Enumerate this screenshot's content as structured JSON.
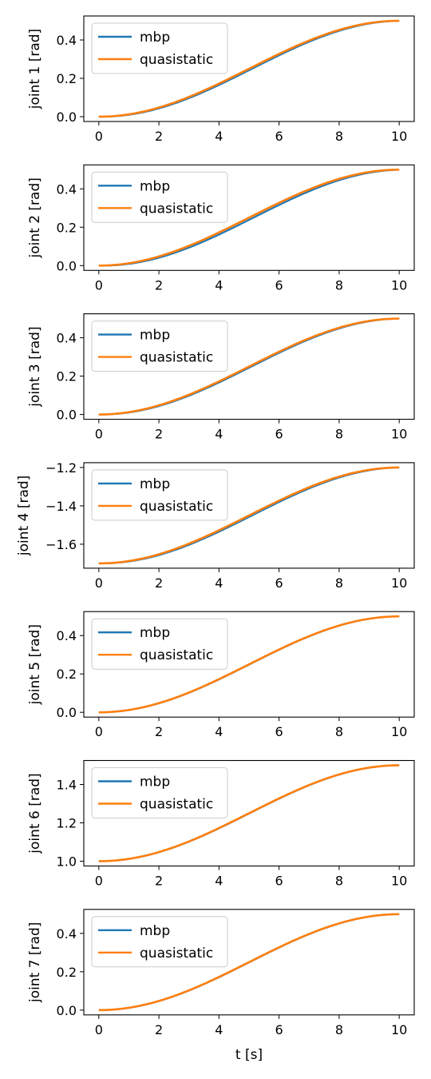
{
  "figure": {
    "xlabel": "t [s]",
    "legend_position": "upper-left",
    "colors": {
      "mbp": "#1f77b4",
      "quasistatic": "#ff7f0e"
    }
  },
  "chart_data": [
    {
      "type": "line",
      "ylabel": "joint 1 [rad]",
      "x_range": [
        0,
        10
      ],
      "xlim": [
        -0.5,
        10.5
      ],
      "xticks": [
        0,
        2,
        4,
        6,
        8,
        10
      ],
      "ylim": [
        -0.025,
        0.525
      ],
      "yticks": [
        0.0,
        0.2,
        0.4
      ],
      "ytick_labels": [
        "0.0",
        "0.2",
        "0.4"
      ],
      "start_value": 0.0,
      "end_value": 0.5,
      "series": [
        {
          "name": "mbp",
          "color": "#1f77b4",
          "lag": 0.1
        },
        {
          "name": "quasistatic",
          "color": "#ff7f0e",
          "lag": 0.0
        }
      ]
    },
    {
      "type": "line",
      "ylabel": "joint 2 [rad]",
      "x_range": [
        0,
        10
      ],
      "xlim": [
        -0.5,
        10.5
      ],
      "xticks": [
        0,
        2,
        4,
        6,
        8,
        10
      ],
      "ylim": [
        -0.025,
        0.525
      ],
      "yticks": [
        0.0,
        0.2,
        0.4
      ],
      "ytick_labels": [
        "0.0",
        "0.2",
        "0.4"
      ],
      "start_value": 0.0,
      "end_value": 0.5,
      "series": [
        {
          "name": "mbp",
          "color": "#1f77b4",
          "lag": 0.15
        },
        {
          "name": "quasistatic",
          "color": "#ff7f0e",
          "lag": 0.0
        }
      ]
    },
    {
      "type": "line",
      "ylabel": "joint 3 [rad]",
      "x_range": [
        0,
        10
      ],
      "xlim": [
        -0.5,
        10.5
      ],
      "xticks": [
        0,
        2,
        4,
        6,
        8,
        10
      ],
      "ylim": [
        -0.025,
        0.525
      ],
      "yticks": [
        0.0,
        0.2,
        0.4
      ],
      "ytick_labels": [
        "0.0",
        "0.2",
        "0.4"
      ],
      "start_value": 0.0,
      "end_value": 0.5,
      "series": [
        {
          "name": "mbp",
          "color": "#1f77b4",
          "lag": 0.08
        },
        {
          "name": "quasistatic",
          "color": "#ff7f0e",
          "lag": 0.0
        }
      ]
    },
    {
      "type": "line",
      "ylabel": "joint 4 [rad]",
      "x_range": [
        0,
        10
      ],
      "xlim": [
        -0.5,
        10.5
      ],
      "xticks": [
        0,
        2,
        4,
        6,
        8,
        10
      ],
      "ylim": [
        -1.725,
        -1.175
      ],
      "yticks": [
        -1.6,
        -1.4,
        -1.2
      ],
      "ytick_labels": [
        "−1.6",
        "−1.4",
        "−1.2"
      ],
      "start_value": -1.7,
      "end_value": -1.2,
      "series": [
        {
          "name": "mbp",
          "color": "#1f77b4",
          "lag": 0.1
        },
        {
          "name": "quasistatic",
          "color": "#ff7f0e",
          "lag": 0.0
        }
      ]
    },
    {
      "type": "line",
      "ylabel": "joint 5 [rad]",
      "x_range": [
        0,
        10
      ],
      "xlim": [
        -0.5,
        10.5
      ],
      "xticks": [
        0,
        2,
        4,
        6,
        8,
        10
      ],
      "ylim": [
        -0.025,
        0.525
      ],
      "yticks": [
        0.0,
        0.2,
        0.4
      ],
      "ytick_labels": [
        "0.0",
        "0.2",
        "0.4"
      ],
      "start_value": 0.0,
      "end_value": 0.5,
      "series": [
        {
          "name": "mbp",
          "color": "#1f77b4",
          "lag": 0.02
        },
        {
          "name": "quasistatic",
          "color": "#ff7f0e",
          "lag": 0.0
        }
      ]
    },
    {
      "type": "line",
      "ylabel": "joint 6 [rad]",
      "x_range": [
        0,
        10
      ],
      "xlim": [
        -0.5,
        10.5
      ],
      "xticks": [
        0,
        2,
        4,
        6,
        8,
        10
      ],
      "ylim": [
        0.975,
        1.525
      ],
      "yticks": [
        1.0,
        1.2,
        1.4
      ],
      "ytick_labels": [
        "1.0",
        "1.2",
        "1.4"
      ],
      "start_value": 1.0,
      "end_value": 1.5,
      "series": [
        {
          "name": "mbp",
          "color": "#1f77b4",
          "lag": 0.02
        },
        {
          "name": "quasistatic",
          "color": "#ff7f0e",
          "lag": 0.0
        }
      ]
    },
    {
      "type": "line",
      "ylabel": "joint 7 [rad]",
      "x_range": [
        0,
        10
      ],
      "xlim": [
        -0.5,
        10.5
      ],
      "xticks": [
        0,
        2,
        4,
        6,
        8,
        10
      ],
      "ylim": [
        -0.025,
        0.525
      ],
      "yticks": [
        0.0,
        0.2,
        0.4
      ],
      "ytick_labels": [
        "0.0",
        "0.2",
        "0.4"
      ],
      "start_value": 0.0,
      "end_value": 0.5,
      "series": [
        {
          "name": "mbp",
          "color": "#1f77b4",
          "lag": 0.02
        },
        {
          "name": "quasistatic",
          "color": "#ff7f0e",
          "lag": 0.0
        }
      ]
    }
  ]
}
